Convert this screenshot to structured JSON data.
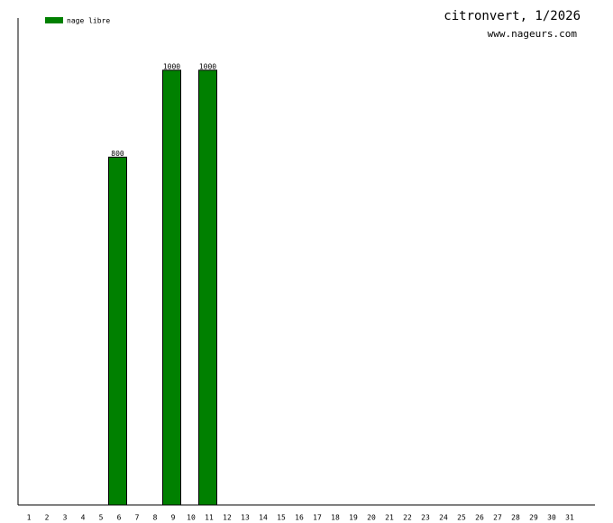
{
  "chart_data": {
    "type": "bar",
    "title": "citronvert, 1/2026",
    "subtitle": "www.nageurs.com",
    "categories": [
      "1",
      "2",
      "3",
      "4",
      "5",
      "6",
      "7",
      "8",
      "9",
      "10",
      "11",
      "12",
      "13",
      "14",
      "15",
      "16",
      "17",
      "18",
      "19",
      "20",
      "21",
      "22",
      "23",
      "24",
      "25",
      "26",
      "27",
      "28",
      "29",
      "30",
      "31"
    ],
    "series": [
      {
        "name": "nage libre",
        "color": "#008000",
        "values": [
          null,
          null,
          null,
          null,
          null,
          800,
          null,
          null,
          1000,
          null,
          1000,
          null,
          null,
          null,
          null,
          null,
          null,
          null,
          null,
          null,
          null,
          null,
          null,
          null,
          null,
          null,
          null,
          null,
          null,
          null,
          null
        ]
      }
    ],
    "ylim": [
      0,
      1120
    ]
  }
}
